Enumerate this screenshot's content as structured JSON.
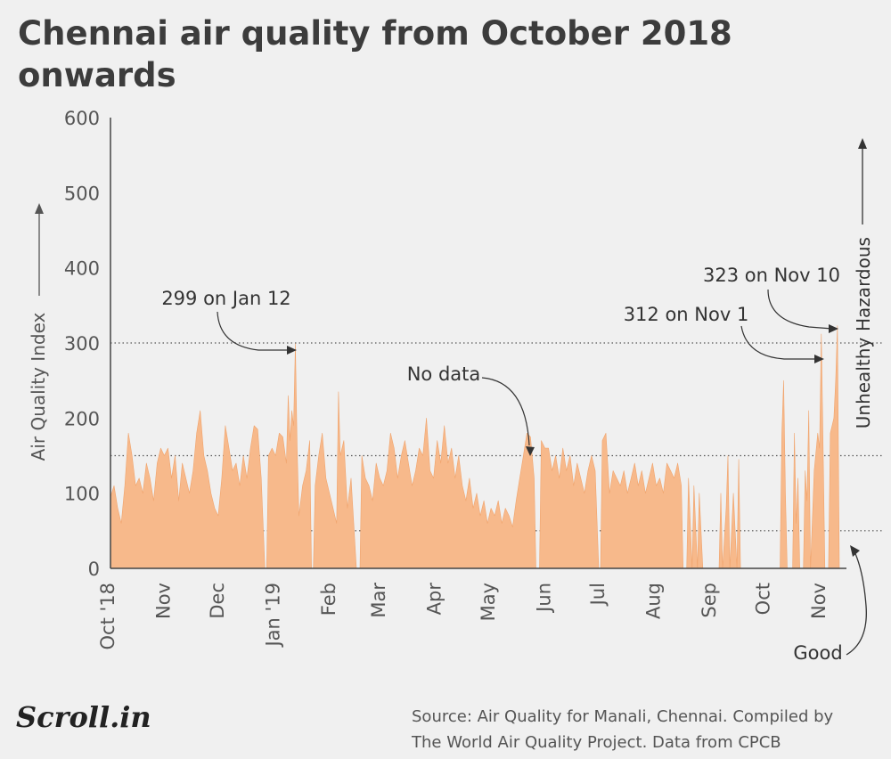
{
  "title": "Chennai air quality from October 2018 onwards",
  "source": {
    "line1": "Source: Air Quality for Manali, Chennai. Compiled by",
    "line2": "The World Air Quality Project. Data from CPCB"
  },
  "logo_text": "Scroll.in",
  "chart_data": {
    "type": "area",
    "ylabel": "Air Quality Index",
    "xlabel": "",
    "ylim": [
      0,
      600
    ],
    "yticks": [
      0,
      100,
      200,
      300,
      400,
      500,
      600
    ],
    "xlim": [
      "2018-10-01",
      "2019-11-14"
    ],
    "xticks": [
      {
        "date": "2018-10-01",
        "label": "Oct '18"
      },
      {
        "date": "2018-11-01",
        "label": "Nov"
      },
      {
        "date": "2018-12-01",
        "label": "Dec"
      },
      {
        "date": "2019-01-01",
        "label": "Jan '19"
      },
      {
        "date": "2019-02-01",
        "label": "Feb"
      },
      {
        "date": "2019-03-01",
        "label": "Mar"
      },
      {
        "date": "2019-04-01",
        "label": "Apr"
      },
      {
        "date": "2019-05-01",
        "label": "May"
      },
      {
        "date": "2019-06-01",
        "label": "Jun"
      },
      {
        "date": "2019-07-01",
        "label": "Jul"
      },
      {
        "date": "2019-08-01",
        "label": "Aug"
      },
      {
        "date": "2019-09-01",
        "label": "Sep"
      },
      {
        "date": "2019-10-01",
        "label": "Oct"
      },
      {
        "date": "2019-11-01",
        "label": "Nov"
      }
    ],
    "thresholds": [
      {
        "value": 50,
        "label": "Good"
      },
      {
        "value": 150,
        "label": "Unhealthy"
      },
      {
        "value": 300,
        "label": "Hazardous"
      }
    ],
    "annotations": [
      {
        "text": "299 on Jan 12",
        "date": "2019-01-12",
        "value": 299
      },
      {
        "text": "No data",
        "date": "2019-05-26",
        "value": 150
      },
      {
        "text": "312 on Nov 1",
        "date": "2019-11-01",
        "value": 312
      },
      {
        "text": "323 on Nov 10",
        "date": "2019-11-10",
        "value": 323
      }
    ],
    "colors": {
      "fill": "#f7b98b",
      "stroke": "#f0a46d",
      "axis": "#444444",
      "threshold": "#555555",
      "text": "#555555"
    },
    "series": [
      {
        "points": [
          [
            "2018-10-01",
            95
          ],
          [
            "2018-10-03",
            110
          ],
          [
            "2018-10-05",
            80
          ],
          [
            "2018-10-07",
            60
          ],
          [
            "2018-10-09",
            110
          ],
          [
            "2018-10-11",
            180
          ],
          [
            "2018-10-13",
            150
          ],
          [
            "2018-10-15",
            110
          ],
          [
            "2018-10-17",
            120
          ],
          [
            "2018-10-19",
            100
          ],
          [
            "2018-10-21",
            140
          ],
          [
            "2018-10-23",
            120
          ],
          [
            "2018-10-25",
            90
          ],
          [
            "2018-10-27",
            140
          ],
          [
            "2018-10-29",
            160
          ],
          [
            "2018-10-31",
            150
          ],
          [
            "2018-11-02",
            160
          ],
          [
            "2018-11-04",
            120
          ],
          [
            "2018-11-06",
            150
          ],
          [
            "2018-11-08",
            90
          ],
          [
            "2018-11-10",
            140
          ],
          [
            "2018-11-12",
            120
          ],
          [
            "2018-11-14",
            100
          ],
          [
            "2018-11-16",
            130
          ],
          [
            "2018-11-18",
            180
          ],
          [
            "2018-11-20",
            210
          ],
          [
            "2018-11-22",
            150
          ],
          [
            "2018-11-24",
            130
          ],
          [
            "2018-11-26",
            100
          ],
          [
            "2018-11-28",
            80
          ],
          [
            "2018-11-30",
            70
          ],
          [
            "2018-12-02",
            120
          ],
          [
            "2018-12-04",
            190
          ],
          [
            "2018-12-06",
            160
          ],
          [
            "2018-12-08",
            130
          ],
          [
            "2018-12-10",
            140
          ],
          [
            "2018-12-12",
            110
          ],
          [
            "2018-12-14",
            150
          ],
          [
            "2018-12-16",
            120
          ],
          [
            "2018-12-18",
            160
          ],
          [
            "2018-12-20",
            190
          ],
          [
            "2018-12-22",
            185
          ],
          [
            "2018-12-24",
            120
          ],
          [
            "2018-12-26",
            0
          ],
          [
            "2018-12-27",
            0
          ],
          [
            "2018-12-28",
            150
          ],
          [
            "2018-12-30",
            160
          ],
          [
            "2019-01-01",
            150
          ],
          [
            "2019-01-03",
            180
          ],
          [
            "2019-01-05",
            175
          ],
          [
            "2019-01-07",
            140
          ],
          [
            "2019-01-08",
            230
          ],
          [
            "2019-01-09",
            170
          ],
          [
            "2019-01-10",
            210
          ],
          [
            "2019-01-11",
            190
          ],
          [
            "2019-01-12",
            299
          ],
          [
            "2019-01-13",
            160
          ],
          [
            "2019-01-14",
            70
          ],
          [
            "2019-01-16",
            110
          ],
          [
            "2019-01-18",
            130
          ],
          [
            "2019-01-20",
            170
          ],
          [
            "2019-01-21",
            0
          ],
          [
            "2019-01-22",
            0
          ],
          [
            "2019-01-23",
            110
          ],
          [
            "2019-01-25",
            150
          ],
          [
            "2019-01-27",
            180
          ],
          [
            "2019-01-29",
            120
          ],
          [
            "2019-01-31",
            100
          ],
          [
            "2019-02-02",
            80
          ],
          [
            "2019-02-04",
            60
          ],
          [
            "2019-02-05",
            235
          ],
          [
            "2019-02-06",
            150
          ],
          [
            "2019-02-08",
            170
          ],
          [
            "2019-02-10",
            80
          ],
          [
            "2019-02-12",
            120
          ],
          [
            "2019-02-14",
            40
          ],
          [
            "2019-02-15",
            0
          ],
          [
            "2019-02-17",
            0
          ],
          [
            "2019-02-18",
            150
          ],
          [
            "2019-02-20",
            120
          ],
          [
            "2019-02-22",
            110
          ],
          [
            "2019-02-24",
            90
          ],
          [
            "2019-02-26",
            140
          ],
          [
            "2019-02-28",
            120
          ],
          [
            "2019-03-02",
            110
          ],
          [
            "2019-03-04",
            130
          ],
          [
            "2019-03-06",
            180
          ],
          [
            "2019-03-08",
            160
          ],
          [
            "2019-03-10",
            120
          ],
          [
            "2019-03-12",
            150
          ],
          [
            "2019-03-14",
            170
          ],
          [
            "2019-03-16",
            140
          ],
          [
            "2019-03-18",
            110
          ],
          [
            "2019-03-20",
            130
          ],
          [
            "2019-03-22",
            160
          ],
          [
            "2019-03-24",
            150
          ],
          [
            "2019-03-26",
            200
          ],
          [
            "2019-03-28",
            130
          ],
          [
            "2019-03-30",
            120
          ],
          [
            "2019-04-01",
            170
          ],
          [
            "2019-04-03",
            140
          ],
          [
            "2019-04-05",
            190
          ],
          [
            "2019-04-07",
            140
          ],
          [
            "2019-04-09",
            160
          ],
          [
            "2019-04-11",
            120
          ],
          [
            "2019-04-13",
            150
          ],
          [
            "2019-04-15",
            110
          ],
          [
            "2019-04-17",
            90
          ],
          [
            "2019-04-19",
            120
          ],
          [
            "2019-04-21",
            80
          ],
          [
            "2019-04-23",
            100
          ],
          [
            "2019-04-25",
            70
          ],
          [
            "2019-04-27",
            90
          ],
          [
            "2019-04-29",
            60
          ],
          [
            "2019-05-01",
            80
          ],
          [
            "2019-05-03",
            70
          ],
          [
            "2019-05-05",
            90
          ],
          [
            "2019-05-07",
            60
          ],
          [
            "2019-05-09",
            80
          ],
          [
            "2019-05-11",
            70
          ],
          [
            "2019-05-13",
            55
          ],
          [
            "2019-05-15",
            90
          ],
          [
            "2019-05-17",
            120
          ],
          [
            "2019-05-19",
            150
          ],
          [
            "2019-05-21",
            180
          ],
          [
            "2019-05-23",
            175
          ],
          [
            "2019-05-25",
            120
          ],
          [
            "2019-05-26",
            0
          ],
          [
            "2019-05-28",
            0
          ],
          [
            "2019-05-29",
            170
          ],
          [
            "2019-05-31",
            160
          ],
          [
            "2019-06-02",
            160
          ],
          [
            "2019-06-04",
            130
          ],
          [
            "2019-06-06",
            150
          ],
          [
            "2019-06-08",
            120
          ],
          [
            "2019-06-10",
            160
          ],
          [
            "2019-06-12",
            130
          ],
          [
            "2019-06-14",
            150
          ],
          [
            "2019-06-16",
            110
          ],
          [
            "2019-06-18",
            140
          ],
          [
            "2019-06-20",
            120
          ],
          [
            "2019-06-22",
            100
          ],
          [
            "2019-06-24",
            130
          ],
          [
            "2019-06-26",
            150
          ],
          [
            "2019-06-28",
            130
          ],
          [
            "2019-06-30",
            0
          ],
          [
            "2019-07-01",
            0
          ],
          [
            "2019-07-02",
            170
          ],
          [
            "2019-07-04",
            180
          ],
          [
            "2019-07-06",
            100
          ],
          [
            "2019-07-08",
            130
          ],
          [
            "2019-07-10",
            120
          ],
          [
            "2019-07-12",
            110
          ],
          [
            "2019-07-14",
            130
          ],
          [
            "2019-07-16",
            100
          ],
          [
            "2019-07-18",
            120
          ],
          [
            "2019-07-20",
            140
          ],
          [
            "2019-07-22",
            110
          ],
          [
            "2019-07-24",
            130
          ],
          [
            "2019-07-26",
            100
          ],
          [
            "2019-07-28",
            120
          ],
          [
            "2019-07-30",
            140
          ],
          [
            "2019-08-01",
            110
          ],
          [
            "2019-08-03",
            120
          ],
          [
            "2019-08-05",
            100
          ],
          [
            "2019-08-07",
            140
          ],
          [
            "2019-08-09",
            130
          ],
          [
            "2019-08-11",
            120
          ],
          [
            "2019-08-13",
            140
          ],
          [
            "2019-08-15",
            110
          ],
          [
            "2019-08-16",
            0
          ],
          [
            "2019-08-18",
            0
          ],
          [
            "2019-08-19",
            120
          ],
          [
            "2019-08-21",
            0
          ],
          [
            "2019-08-22",
            110
          ],
          [
            "2019-08-24",
            0
          ],
          [
            "2019-08-25",
            100
          ],
          [
            "2019-08-27",
            0
          ],
          [
            "2019-09-05",
            0
          ],
          [
            "2019-09-06",
            100
          ],
          [
            "2019-09-07",
            0
          ],
          [
            "2019-09-09",
            80
          ],
          [
            "2019-09-10",
            150
          ],
          [
            "2019-09-11",
            0
          ],
          [
            "2019-09-13",
            100
          ],
          [
            "2019-09-15",
            0
          ],
          [
            "2019-09-16",
            145
          ],
          [
            "2019-09-17",
            0
          ],
          [
            "2019-09-21",
            0
          ],
          [
            "2019-10-09",
            0
          ],
          [
            "2019-10-10",
            180
          ],
          [
            "2019-10-11",
            250
          ],
          [
            "2019-10-12",
            100
          ],
          [
            "2019-10-13",
            0
          ],
          [
            "2019-10-16",
            0
          ],
          [
            "2019-10-17",
            180
          ],
          [
            "2019-10-18",
            60
          ],
          [
            "2019-10-19",
            120
          ],
          [
            "2019-10-20",
            0
          ],
          [
            "2019-10-22",
            0
          ],
          [
            "2019-10-23",
            130
          ],
          [
            "2019-10-24",
            90
          ],
          [
            "2019-10-25",
            210
          ],
          [
            "2019-10-26",
            0
          ],
          [
            "2019-10-28",
            130
          ],
          [
            "2019-10-30",
            180
          ],
          [
            "2019-10-31",
            160
          ],
          [
            "2019-11-01",
            312
          ],
          [
            "2019-11-02",
            160
          ],
          [
            "2019-11-03",
            0
          ],
          [
            "2019-11-05",
            0
          ],
          [
            "2019-11-06",
            180
          ],
          [
            "2019-11-07",
            190
          ],
          [
            "2019-11-08",
            200
          ],
          [
            "2019-11-09",
            250
          ],
          [
            "2019-11-10",
            323
          ],
          [
            "2019-11-11",
            0
          ]
        ]
      }
    ]
  }
}
